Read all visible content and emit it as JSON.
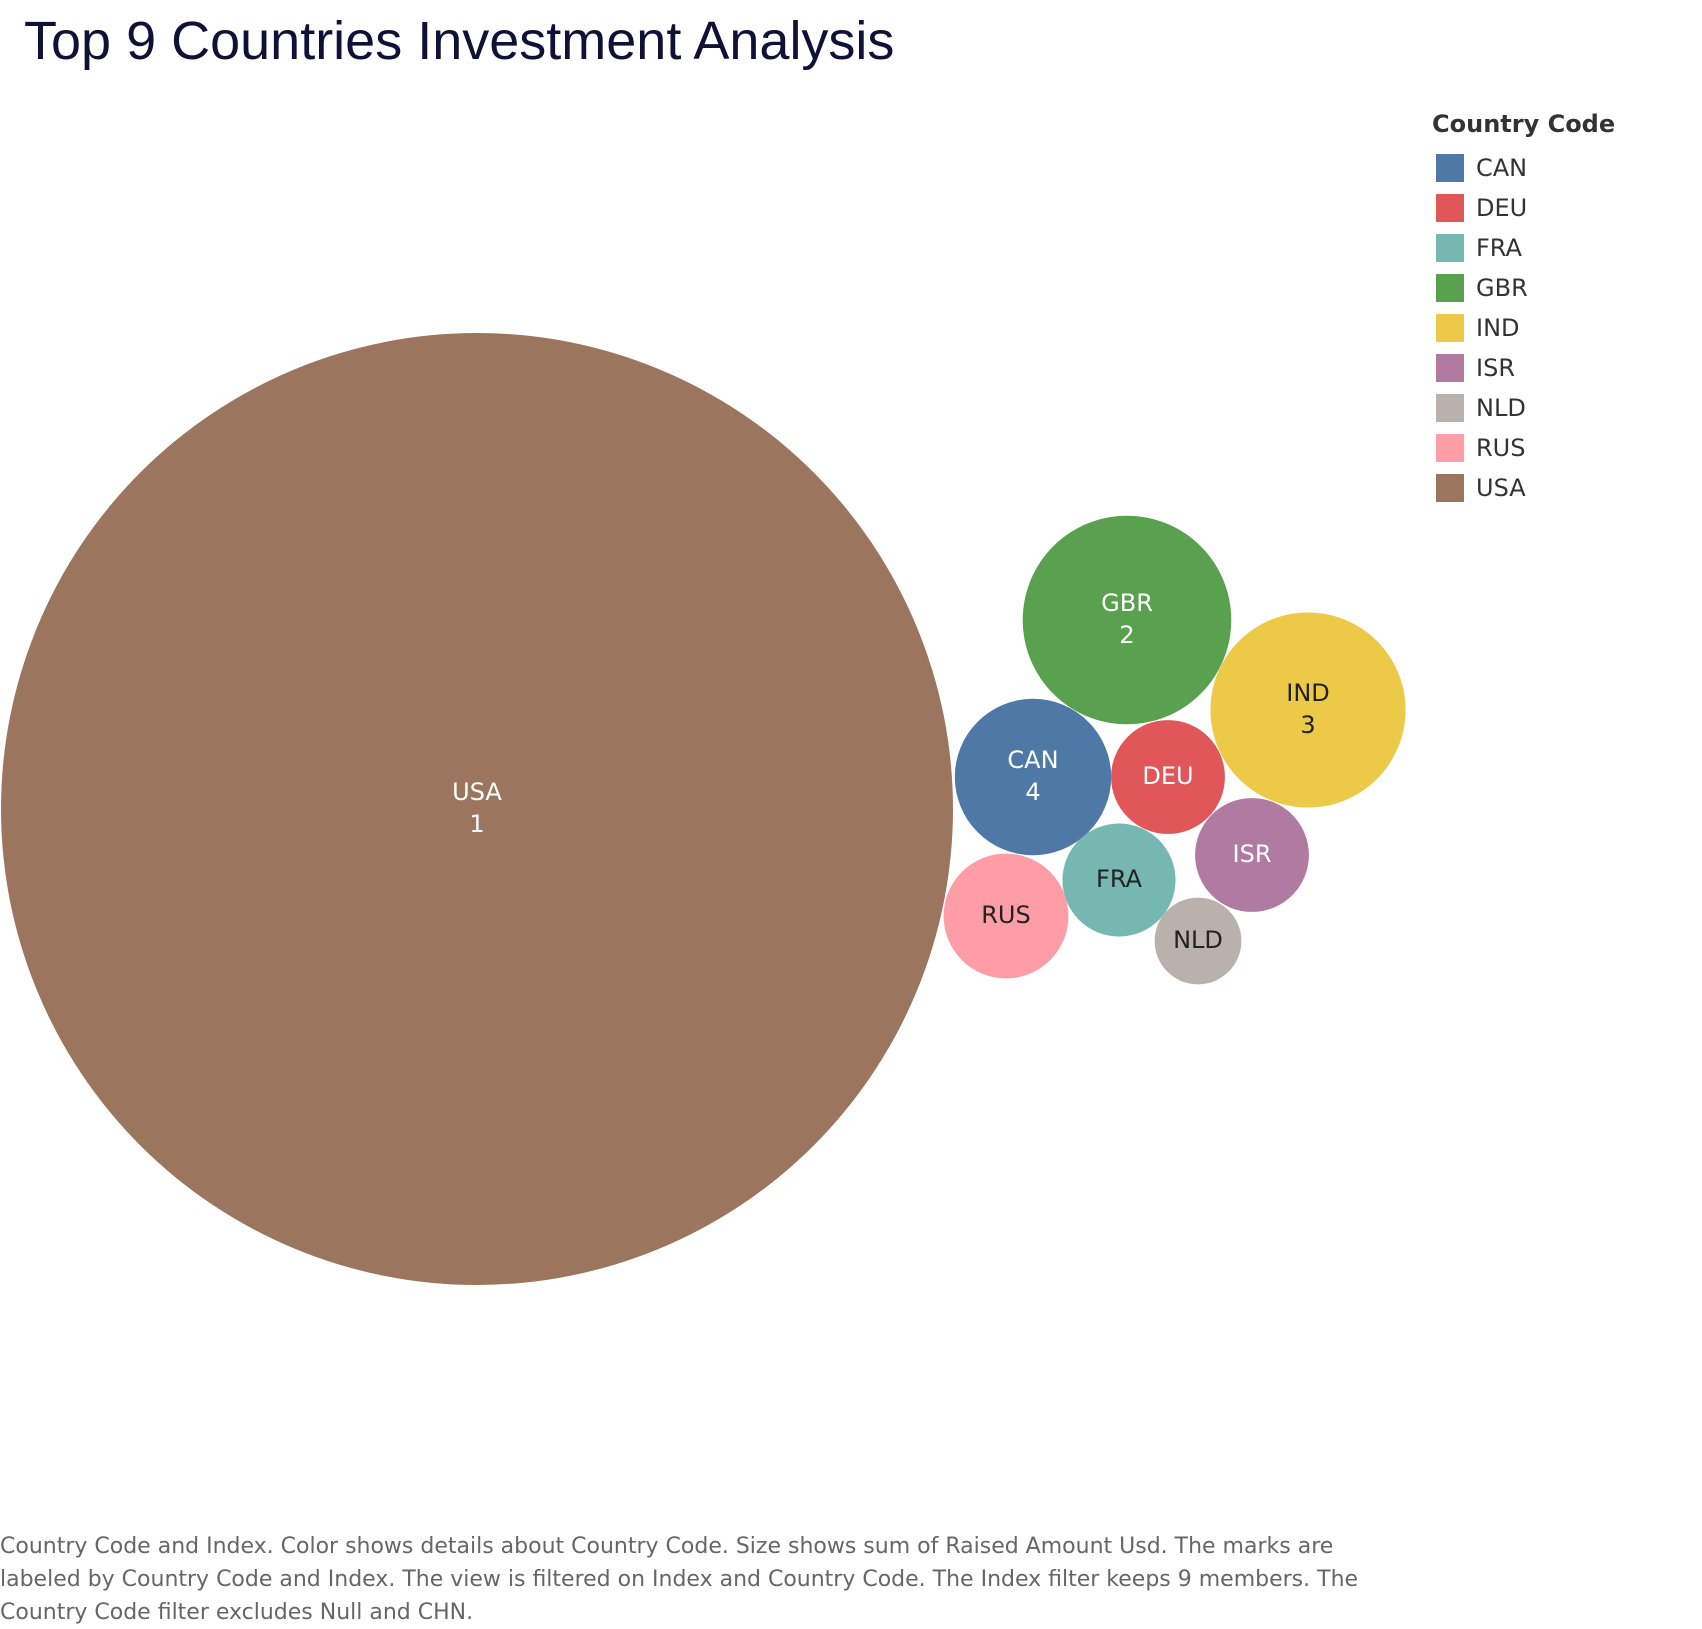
{
  "title": "Top 9 Countries Investment Analysis",
  "legend": {
    "title": "Country Code",
    "items": [
      {
        "label": "CAN",
        "color": "#4e79a7"
      },
      {
        "label": "DEU",
        "color": "#e15759"
      },
      {
        "label": "FRA",
        "color": "#76b7b2"
      },
      {
        "label": "GBR",
        "color": "#59a14f"
      },
      {
        "label": "IND",
        "color": "#edc948"
      },
      {
        "label": "ISR",
        "color": "#b07aa1"
      },
      {
        "label": "NLD",
        "color": "#bab0ac"
      },
      {
        "label": "RUS",
        "color": "#ff9da7"
      },
      {
        "label": "USA",
        "color": "#9c755f"
      }
    ]
  },
  "caption": "Country Code and Index.  Color shows details about Country Code.  Size shows sum of Raised Amount Usd.  The marks are labeled by Country Code and Index. The view is filtered on Index and Country Code. The Index filter keeps 9 members. The Country Code filter excludes Null and CHN.",
  "chart_data": {
    "type": "bubble",
    "size_measure": "sum of Raised Amount Usd",
    "color_dimension": "Country Code",
    "label_fields": [
      "Country Code",
      "Index"
    ],
    "series": [
      {
        "country": "USA",
        "index": "1",
        "relative_size": 1.0,
        "color": "#9c755f",
        "label_color": "#ffffff"
      },
      {
        "country": "GBR",
        "index": "2",
        "relative_size": 0.048,
        "color": "#59a14f",
        "label_color": "#ffffff"
      },
      {
        "country": "IND",
        "index": "3",
        "relative_size": 0.042,
        "color": "#edc948",
        "label_color": "#222222"
      },
      {
        "country": "CAN",
        "index": "4",
        "relative_size": 0.027,
        "color": "#4e79a7",
        "label_color": "#ffffff"
      },
      {
        "country": "DEU",
        "index": "",
        "relative_size": 0.0143,
        "color": "#e15759",
        "label_color": "#ffffff"
      },
      {
        "country": "ISR",
        "index": "",
        "relative_size": 0.0143,
        "color": "#b07aa1",
        "label_color": "#ffffff"
      },
      {
        "country": "FRA",
        "index": "",
        "relative_size": 0.0141,
        "color": "#76b7b2",
        "label_color": "#222222"
      },
      {
        "country": "RUS",
        "index": "",
        "relative_size": 0.0172,
        "color": "#ff9da7",
        "label_color": "#222222"
      },
      {
        "country": "NLD",
        "index": "",
        "relative_size": 0.0083,
        "color": "#bab0ac",
        "label_color": "#222222"
      }
    ]
  }
}
